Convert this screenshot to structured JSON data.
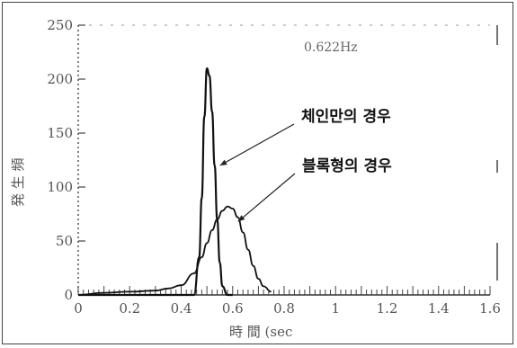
{
  "chart_data": {
    "type": "line",
    "title": "",
    "xlabel": "時 間 (sec",
    "ylabel": "発 生 頻",
    "xlim": [
      0,
      1.6
    ],
    "ylim": [
      0,
      250
    ],
    "x_ticks": [
      "0",
      "0.2",
      "0.4",
      "0.6",
      "0.8",
      "1",
      "1.2",
      "1.4",
      "1.6"
    ],
    "y_ticks": [
      "0",
      "50",
      "100",
      "150",
      "200",
      "250"
    ],
    "note": "0.622Hz",
    "grid": false,
    "series": [
      {
        "name": "체인만의 경우",
        "color": "#111111",
        "x": [
          0,
          0.2,
          0.3,
          0.4,
          0.45,
          0.47,
          0.48,
          0.49,
          0.5,
          0.51,
          0.52,
          0.53,
          0.54,
          0.55,
          0.56,
          0.58,
          0.6
        ],
        "y": [
          0,
          0,
          0,
          0,
          0,
          35,
          90,
          165,
          210,
          203,
          170,
          120,
          70,
          30,
          8,
          0,
          0
        ]
      },
      {
        "name": "블록형의 경우",
        "color": "#111111",
        "x": [
          0,
          0.1,
          0.2,
          0.3,
          0.35,
          0.4,
          0.45,
          0.48,
          0.5,
          0.52,
          0.54,
          0.56,
          0.58,
          0.6,
          0.62,
          0.64,
          0.66,
          0.68,
          0.7,
          0.72,
          0.75
        ],
        "y": [
          0,
          2,
          3,
          4,
          6,
          9,
          20,
          35,
          48,
          60,
          70,
          78,
          82,
          80,
          72,
          58,
          42,
          27,
          15,
          8,
          3
        ]
      }
    ],
    "annotations": [
      {
        "text": "체인만의 경우",
        "series": 0
      },
      {
        "text": "블록형의 경우",
        "series": 1
      }
    ]
  }
}
